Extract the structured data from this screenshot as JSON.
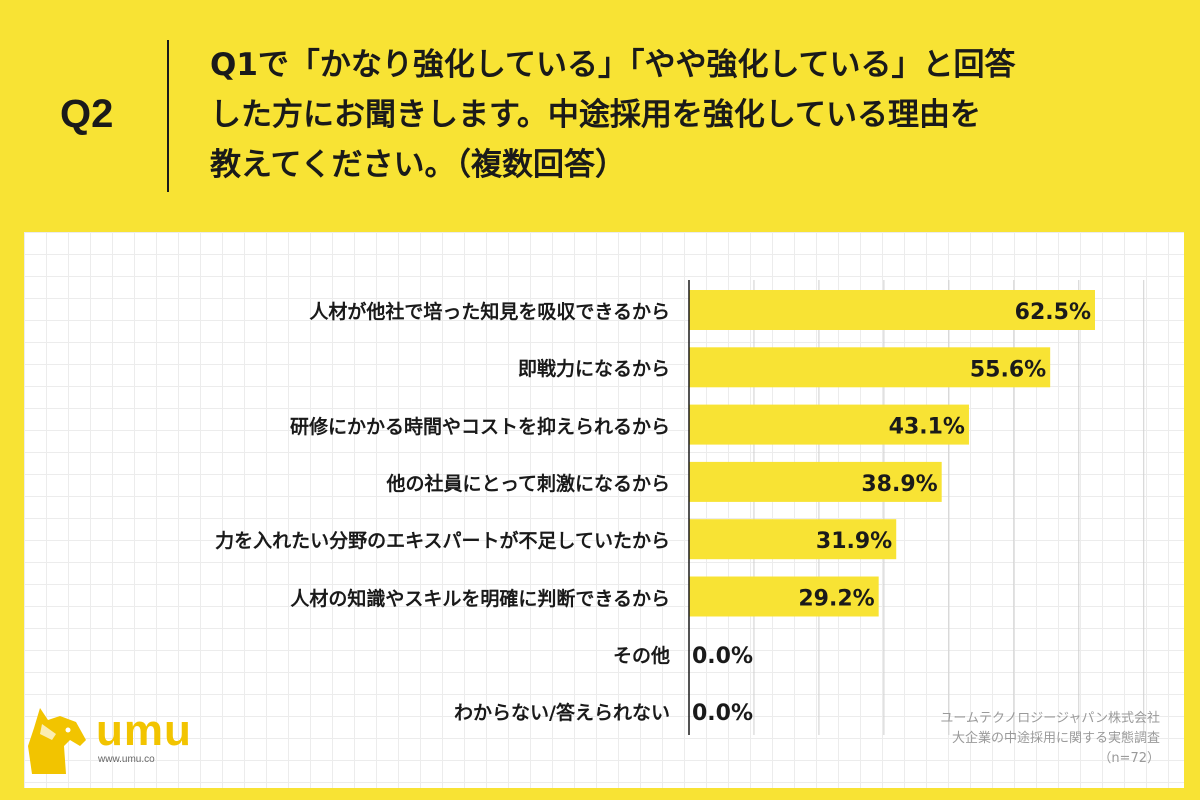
{
  "header": {
    "question_number": "Q2",
    "question_lines": [
      "Q1で「かなり強化している」「やや強化している」と回答",
      "した方にお聞きします。中途採用を強化している理由を",
      "教えてください。（複数回答）"
    ]
  },
  "colors": {
    "background": "#f8e334",
    "bar": "#f8e334",
    "text": "#1a1a1a",
    "panel": "#ffffff",
    "logo": "#f2c400"
  },
  "chart_data": {
    "type": "bar",
    "orientation": "horizontal",
    "categories": [
      "人材が他社で培った知見を吸収できるから",
      "即戦力になるから",
      "研修にかかる時間やコストを抑えられるから",
      "他の社員にとって刺激になるから",
      "力を入れたい分野のエキスパートが不足していたから",
      "人材の知識やスキルを明確に判断できるから",
      "その他",
      "わからない/答えられない"
    ],
    "values": [
      62.5,
      55.6,
      43.1,
      38.9,
      31.9,
      29.2,
      0.0,
      0.0
    ],
    "value_labels": [
      "62.5%",
      "55.6%",
      "43.1%",
      "38.9%",
      "31.9%",
      "29.2%",
      "0.0%",
      "0.0%"
    ],
    "xlim": [
      0,
      70
    ],
    "grid": true
  },
  "credit": {
    "company": "ユームテクノロジージャパン株式会社",
    "survey": "大企業の中途採用に関する実態調査",
    "sample": "（n=72）"
  },
  "logo": {
    "text": "umu",
    "url": "www.umu.co",
    "icon": "horse-head-icon"
  }
}
